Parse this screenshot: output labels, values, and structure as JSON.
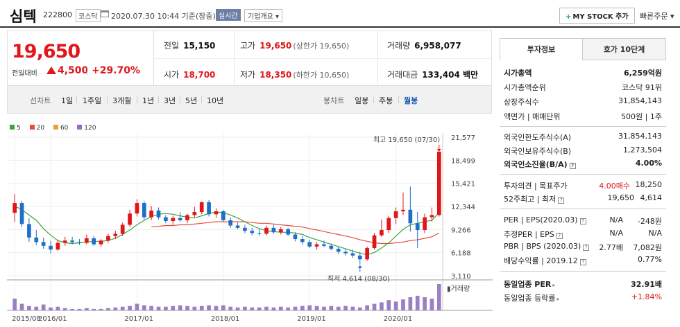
{
  "stock": {
    "name": "심텍",
    "code": "222800",
    "market": "코스닥",
    "datetime": "2020.07.30 10:44 기준(장중)",
    "realtime_badge": "실시간",
    "overview_btn": "기업개요",
    "overview_arrow": "▾",
    "mystock_btn": "MY STOCK 추가",
    "mystock_plus": "+",
    "quick_order": "빠른주문",
    "quick_order_arrow": "▾"
  },
  "price": {
    "current": "19,650",
    "prev_label": "전일대비",
    "change": "4,500",
    "change_pct": "+29.70%",
    "direction_icon": "up-triangle-icon"
  },
  "quote": {
    "prev_close_label": "전일",
    "prev_close": "15,150",
    "high_label": "고가",
    "high": "19,650",
    "high_limit": "(상한가 19,650)",
    "volume_label": "거래량",
    "volume": "6,958,077",
    "open_label": "시가",
    "open": "18,700",
    "low_label": "저가",
    "low": "18,350",
    "low_limit": "(하한가 10,650)",
    "amount_label": "거래대금",
    "amount": "133,404 백만"
  },
  "period_bar": {
    "line_label": "선차트",
    "line_periods": [
      "1일",
      "1주일",
      "3개월",
      "1년",
      "3년",
      "5년",
      "10년"
    ],
    "candle_label": "봉차트",
    "candle_periods": [
      "일봉",
      "주봉",
      "월봉"
    ],
    "active_candle": "월봉"
  },
  "chart_data": {
    "type": "candlestick",
    "legend": [
      {
        "name": "5",
        "color": "#3aa53a"
      },
      {
        "name": "20",
        "color": "#e84a3c"
      },
      {
        "name": "60",
        "color": "#f0a030"
      },
      {
        "name": "120",
        "color": "#9a6bc0"
      }
    ],
    "up_color": "#e0161b",
    "down_color": "#1f6fc9",
    "ma5_color": "#3aa53a",
    "ma20_color": "#e84a3c",
    "volume_color": "#9b7fc2",
    "y_ticks": [
      "21,577",
      "18,499",
      "15,421",
      "12,344",
      "9,266",
      "6,188",
      "3,110"
    ],
    "ylim": [
      3110,
      21577
    ],
    "x_ticks": [
      {
        "label": "2015/08",
        "index": 0
      },
      {
        "label": "2016/01",
        "index": 5
      },
      {
        "label": "2017/01",
        "index": 17
      },
      {
        "label": "2018/01",
        "index": 29
      },
      {
        "label": "2019/01",
        "index": 41
      },
      {
        "label": "2020/01",
        "index": 53
      }
    ],
    "volume_label": "거래량",
    "high_annotation": "최고 19,650 (07/30)",
    "low_annotation": "최저 4,614 (08/30)",
    "candles": [
      {
        "o": 11500,
        "h": 14000,
        "l": 10300,
        "c": 12800
      },
      {
        "o": 12800,
        "h": 13100,
        "l": 9600,
        "c": 10000
      },
      {
        "o": 10000,
        "h": 10800,
        "l": 7600,
        "c": 8200
      },
      {
        "o": 8200,
        "h": 9200,
        "l": 7200,
        "c": 7600
      },
      {
        "o": 7600,
        "h": 8200,
        "l": 6700,
        "c": 7100
      },
      {
        "o": 7100,
        "h": 7800,
        "l": 6100,
        "c": 6600
      },
      {
        "o": 6600,
        "h": 7900,
        "l": 6400,
        "c": 7500
      },
      {
        "o": 7500,
        "h": 8300,
        "l": 7100,
        "c": 7800
      },
      {
        "o": 7800,
        "h": 8300,
        "l": 7300,
        "c": 7600
      },
      {
        "o": 7600,
        "h": 8000,
        "l": 7200,
        "c": 7500
      },
      {
        "o": 7500,
        "h": 8600,
        "l": 7300,
        "c": 8100
      },
      {
        "o": 8100,
        "h": 8400,
        "l": 7100,
        "c": 7300
      },
      {
        "o": 7300,
        "h": 8000,
        "l": 7000,
        "c": 7800
      },
      {
        "o": 7800,
        "h": 8700,
        "l": 7500,
        "c": 8400
      },
      {
        "o": 8400,
        "h": 9100,
        "l": 8000,
        "c": 8700
      },
      {
        "o": 8700,
        "h": 10200,
        "l": 8400,
        "c": 9900
      },
      {
        "o": 9900,
        "h": 11900,
        "l": 9600,
        "c": 11400
      },
      {
        "o": 11400,
        "h": 13300,
        "l": 11000,
        "c": 12800
      },
      {
        "o": 12800,
        "h": 13100,
        "l": 10600,
        "c": 10900
      },
      {
        "o": 10900,
        "h": 12400,
        "l": 10500,
        "c": 11800
      },
      {
        "o": 11800,
        "h": 12200,
        "l": 10600,
        "c": 10900
      },
      {
        "o": 10900,
        "h": 11200,
        "l": 10100,
        "c": 10400
      },
      {
        "o": 10400,
        "h": 11100,
        "l": 9900,
        "c": 10800
      },
      {
        "o": 10800,
        "h": 11600,
        "l": 10300,
        "c": 10500
      },
      {
        "o": 10500,
        "h": 11400,
        "l": 10100,
        "c": 11200
      },
      {
        "o": 11200,
        "h": 12300,
        "l": 10900,
        "c": 11600
      },
      {
        "o": 11600,
        "h": 13000,
        "l": 11300,
        "c": 12900
      },
      {
        "o": 12900,
        "h": 13200,
        "l": 11000,
        "c": 11300
      },
      {
        "o": 11300,
        "h": 12100,
        "l": 10800,
        "c": 11700
      },
      {
        "o": 11700,
        "h": 11900,
        "l": 10300,
        "c": 10500
      },
      {
        "o": 10500,
        "h": 10900,
        "l": 9500,
        "c": 9800
      },
      {
        "o": 9800,
        "h": 10200,
        "l": 9300,
        "c": 9500
      },
      {
        "o": 9500,
        "h": 9900,
        "l": 8800,
        "c": 9100
      },
      {
        "o": 9100,
        "h": 9500,
        "l": 8500,
        "c": 8800
      },
      {
        "o": 8800,
        "h": 9300,
        "l": 8400,
        "c": 8700
      },
      {
        "o": 8700,
        "h": 9800,
        "l": 8500,
        "c": 9500
      },
      {
        "o": 9500,
        "h": 9900,
        "l": 8700,
        "c": 8900
      },
      {
        "o": 8900,
        "h": 9600,
        "l": 8600,
        "c": 9300
      },
      {
        "o": 9300,
        "h": 9500,
        "l": 8400,
        "c": 8600
      },
      {
        "o": 8600,
        "h": 8900,
        "l": 7700,
        "c": 8000
      },
      {
        "o": 8000,
        "h": 8400,
        "l": 7300,
        "c": 7600
      },
      {
        "o": 7600,
        "h": 7900,
        "l": 6800,
        "c": 7000
      },
      {
        "o": 7000,
        "h": 7600,
        "l": 6600,
        "c": 7300
      },
      {
        "o": 7300,
        "h": 7800,
        "l": 6900,
        "c": 7100
      },
      {
        "o": 7100,
        "h": 7400,
        "l": 6500,
        "c": 6700
      },
      {
        "o": 6700,
        "h": 7000,
        "l": 6000,
        "c": 6300
      },
      {
        "o": 6300,
        "h": 6700,
        "l": 5800,
        "c": 6100
      },
      {
        "o": 6100,
        "h": 6600,
        "l": 5500,
        "c": 5800
      },
      {
        "o": 5800,
        "h": 6300,
        "l": 4614,
        "c": 5300
      },
      {
        "o": 5300,
        "h": 7000,
        "l": 5100,
        "c": 6800
      },
      {
        "o": 6800,
        "h": 8800,
        "l": 6600,
        "c": 8500
      },
      {
        "o": 8500,
        "h": 10600,
        "l": 8300,
        "c": 9200
      },
      {
        "o": 9200,
        "h": 11100,
        "l": 8800,
        "c": 10800
      },
      {
        "o": 10800,
        "h": 12200,
        "l": 10000,
        "c": 11700
      },
      {
        "o": 11700,
        "h": 14200,
        "l": 11200,
        "c": 11900
      },
      {
        "o": 11900,
        "h": 15000,
        "l": 9000,
        "c": 10100
      },
      {
        "o": 10100,
        "h": 11600,
        "l": 6800,
        "c": 9200
      },
      {
        "o": 9200,
        "h": 11400,
        "l": 8800,
        "c": 10900
      },
      {
        "o": 10900,
        "h": 12200,
        "l": 10300,
        "c": 11200
      },
      {
        "o": 11200,
        "h": 19650,
        "l": 11000,
        "c": 19650
      }
    ],
    "ma5": [
      12400,
      11900,
      11200,
      10500,
      9400,
      8500,
      7800,
      7500,
      7400,
      7500,
      7600,
      7700,
      7700,
      7800,
      8100,
      8600,
      9200,
      9900,
      10500,
      11000,
      11300,
      11400,
      11300,
      11100,
      10900,
      10800,
      11100,
      11400,
      11600,
      11500,
      11200,
      10800,
      10300,
      9800,
      9400,
      9100,
      9000,
      8900,
      8900,
      8800,
      8600,
      8200,
      7900,
      7600,
      7300,
      7000,
      6700,
      6400,
      6100,
      5900,
      6200,
      6800,
      7500,
      8400,
      9300,
      9900,
      10100,
      10300,
      10500,
      11500
    ],
    "ma20": [
      null,
      null,
      null,
      null,
      null,
      null,
      null,
      null,
      null,
      null,
      null,
      null,
      null,
      null,
      null,
      null,
      null,
      null,
      null,
      9600,
      9700,
      9800,
      9800,
      9900,
      9900,
      10000,
      10100,
      10200,
      10300,
      10300,
      10300,
      10300,
      10300,
      10200,
      10100,
      10100,
      10000,
      9900,
      9800,
      9700,
      9600,
      9400,
      9200,
      9000,
      8800,
      8600,
      8400,
      8200,
      7900,
      7700,
      7500,
      7400,
      7400,
      7500,
      7600,
      7800,
      7900,
      8100,
      8300,
      8800
    ],
    "volumes": [
      16,
      9,
      6,
      5,
      8,
      4,
      5,
      3,
      2,
      2,
      3,
      2,
      2,
      3,
      4,
      5,
      6,
      9,
      7,
      6,
      5,
      5,
      6,
      7,
      6,
      5,
      6,
      7,
      6,
      7,
      5,
      4,
      5,
      4,
      4,
      5,
      4,
      5,
      4,
      5,
      6,
      7,
      6,
      5,
      6,
      5,
      6,
      5,
      4,
      7,
      9,
      11,
      14,
      12,
      15,
      18,
      20,
      18,
      16,
      36
    ]
  },
  "panel": {
    "tab_info": "투자정보",
    "tab_orderbook": "호가 10단계",
    "rows": {
      "market_cap_label": "시가총액",
      "market_cap": "6,259억원",
      "market_cap_rank_label": "시가총액순위",
      "market_cap_rank": "코스닥 91위",
      "shares_label": "상장주식수",
      "shares": "31,854,143",
      "par_label": "액면가 | 매매단위",
      "par": "500원 | 1주",
      "foreign_limit_label": "외국인한도주식수(A)",
      "foreign_limit": "31,854,143",
      "foreign_hold_label": "외국인보유주식수(B)",
      "foreign_hold": "1,273,504",
      "foreign_ratio_label": "외국인소진율(B/A)",
      "foreign_ratio": "4.00%",
      "opinion_label": "투자의견 | 목표주가",
      "opinion": "4.00매수",
      "target": "18,250",
      "w52_label": "52주최고 | 최저",
      "w52_high": "19,650",
      "w52_low": "4,614",
      "per_label": "PER | EPS(2020.03)",
      "per": "N/A",
      "eps": "-248원",
      "est_per_label": "추정PER | EPS",
      "est_per": "N/A",
      "est_eps": "N/A",
      "pbr_label": "PBR | BPS (2020.03)",
      "pbr": "2.77배",
      "bps": "7,082원",
      "div_label": "배당수익률 | 2019.12",
      "div": "0.77%",
      "ind_per_label": "동일업종 PER",
      "ind_per": "32.91배",
      "ind_rate_label": "동일업종 등락률",
      "ind_rate": "+1.84%"
    }
  }
}
